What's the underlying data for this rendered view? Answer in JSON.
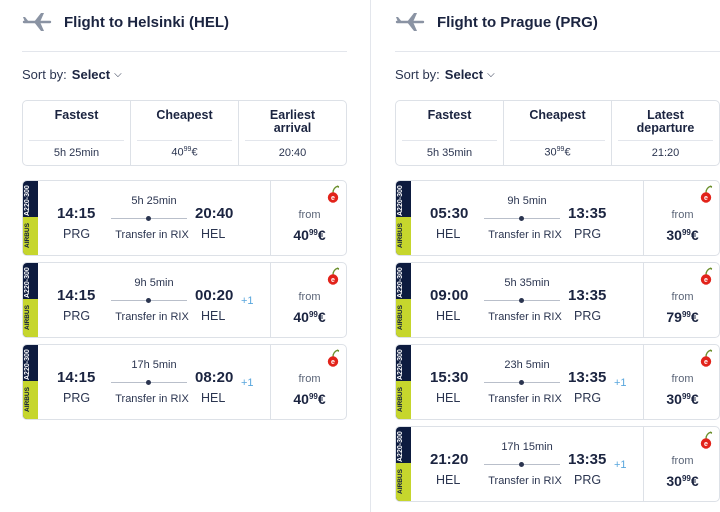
{
  "left": {
    "title": "Flight to Helsinki (HEL)",
    "sort_label": "Sort by:",
    "sort_value": "Select",
    "sort_options": [
      {
        "label": "Fastest",
        "value": "5h 25min"
      },
      {
        "label": "Cheapest",
        "value_main": "40",
        "value_sup": "99",
        "value_cur": "€"
      },
      {
        "label": "Earliest arrival",
        "value": "20:40"
      }
    ],
    "flights": [
      {
        "aircraft": "A220-300",
        "brand": "AIRBUS",
        "dep_time": "14:15",
        "dep_code": "PRG",
        "duration": "5h 25min",
        "transfer": "Transfer in RIX",
        "arr_time": "20:40",
        "plus": "",
        "arr_code": "HEL",
        "from": "from",
        "price_main": "40",
        "price_sup": "99",
        "price_cur": "€"
      },
      {
        "aircraft": "A220-300",
        "brand": "AIRBUS",
        "dep_time": "14:15",
        "dep_code": "PRG",
        "duration": "9h 5min",
        "transfer": "Transfer in RIX",
        "arr_time": "00:20",
        "plus": "+1",
        "arr_code": "HEL",
        "from": "from",
        "price_main": "40",
        "price_sup": "99",
        "price_cur": "€"
      },
      {
        "aircraft": "A220-300",
        "brand": "AIRBUS",
        "dep_time": "14:15",
        "dep_code": "PRG",
        "duration": "17h 5min",
        "transfer": "Transfer in RIX",
        "arr_time": "08:20",
        "plus": "+1",
        "arr_code": "HEL",
        "from": "from",
        "price_main": "40",
        "price_sup": "99",
        "price_cur": "€"
      }
    ]
  },
  "right": {
    "title": "Flight to Prague (PRG)",
    "sort_label": "Sort by:",
    "sort_value": "Select",
    "sort_options": [
      {
        "label": "Fastest",
        "value": "5h 35min"
      },
      {
        "label": "Cheapest",
        "value_main": "30",
        "value_sup": "99",
        "value_cur": "€"
      },
      {
        "label": "Latest departure",
        "value": "21:20"
      }
    ],
    "flights": [
      {
        "aircraft": "A220-300",
        "brand": "AIRBUS",
        "dep_time": "05:30",
        "dep_code": "HEL",
        "duration": "9h 5min",
        "transfer": "Transfer in RIX",
        "arr_time": "13:35",
        "plus": "",
        "arr_code": "PRG",
        "from": "from",
        "price_main": "30",
        "price_sup": "99",
        "price_cur": "€"
      },
      {
        "aircraft": "A220-300",
        "brand": "AIRBUS",
        "dep_time": "09:00",
        "dep_code": "HEL",
        "duration": "5h 35min",
        "transfer": "Transfer in RIX",
        "arr_time": "13:35",
        "plus": "",
        "arr_code": "PRG",
        "from": "from",
        "price_main": "79",
        "price_sup": "99",
        "price_cur": "€"
      },
      {
        "aircraft": "A220-300",
        "brand": "AIRBUS",
        "dep_time": "15:30",
        "dep_code": "HEL",
        "duration": "23h 5min",
        "transfer": "Transfer in RIX",
        "arr_time": "13:35",
        "plus": "+1",
        "arr_code": "PRG",
        "from": "from",
        "price_main": "30",
        "price_sup": "99",
        "price_cur": "€"
      },
      {
        "aircraft": "A220-300",
        "brand": "AIRBUS",
        "dep_time": "21:20",
        "dep_code": "HEL",
        "duration": "17h 15min",
        "transfer": "Transfer in RIX",
        "arr_time": "13:35",
        "plus": "+1",
        "arr_code": "PRG",
        "from": "from",
        "price_main": "30",
        "price_sup": "99",
        "price_cur": "€"
      }
    ]
  },
  "colors": {
    "navy": "#0d1b3f",
    "lime": "#c6d62d",
    "plus_blue": "#58a6dd",
    "cherry_red": "#e2231a"
  }
}
